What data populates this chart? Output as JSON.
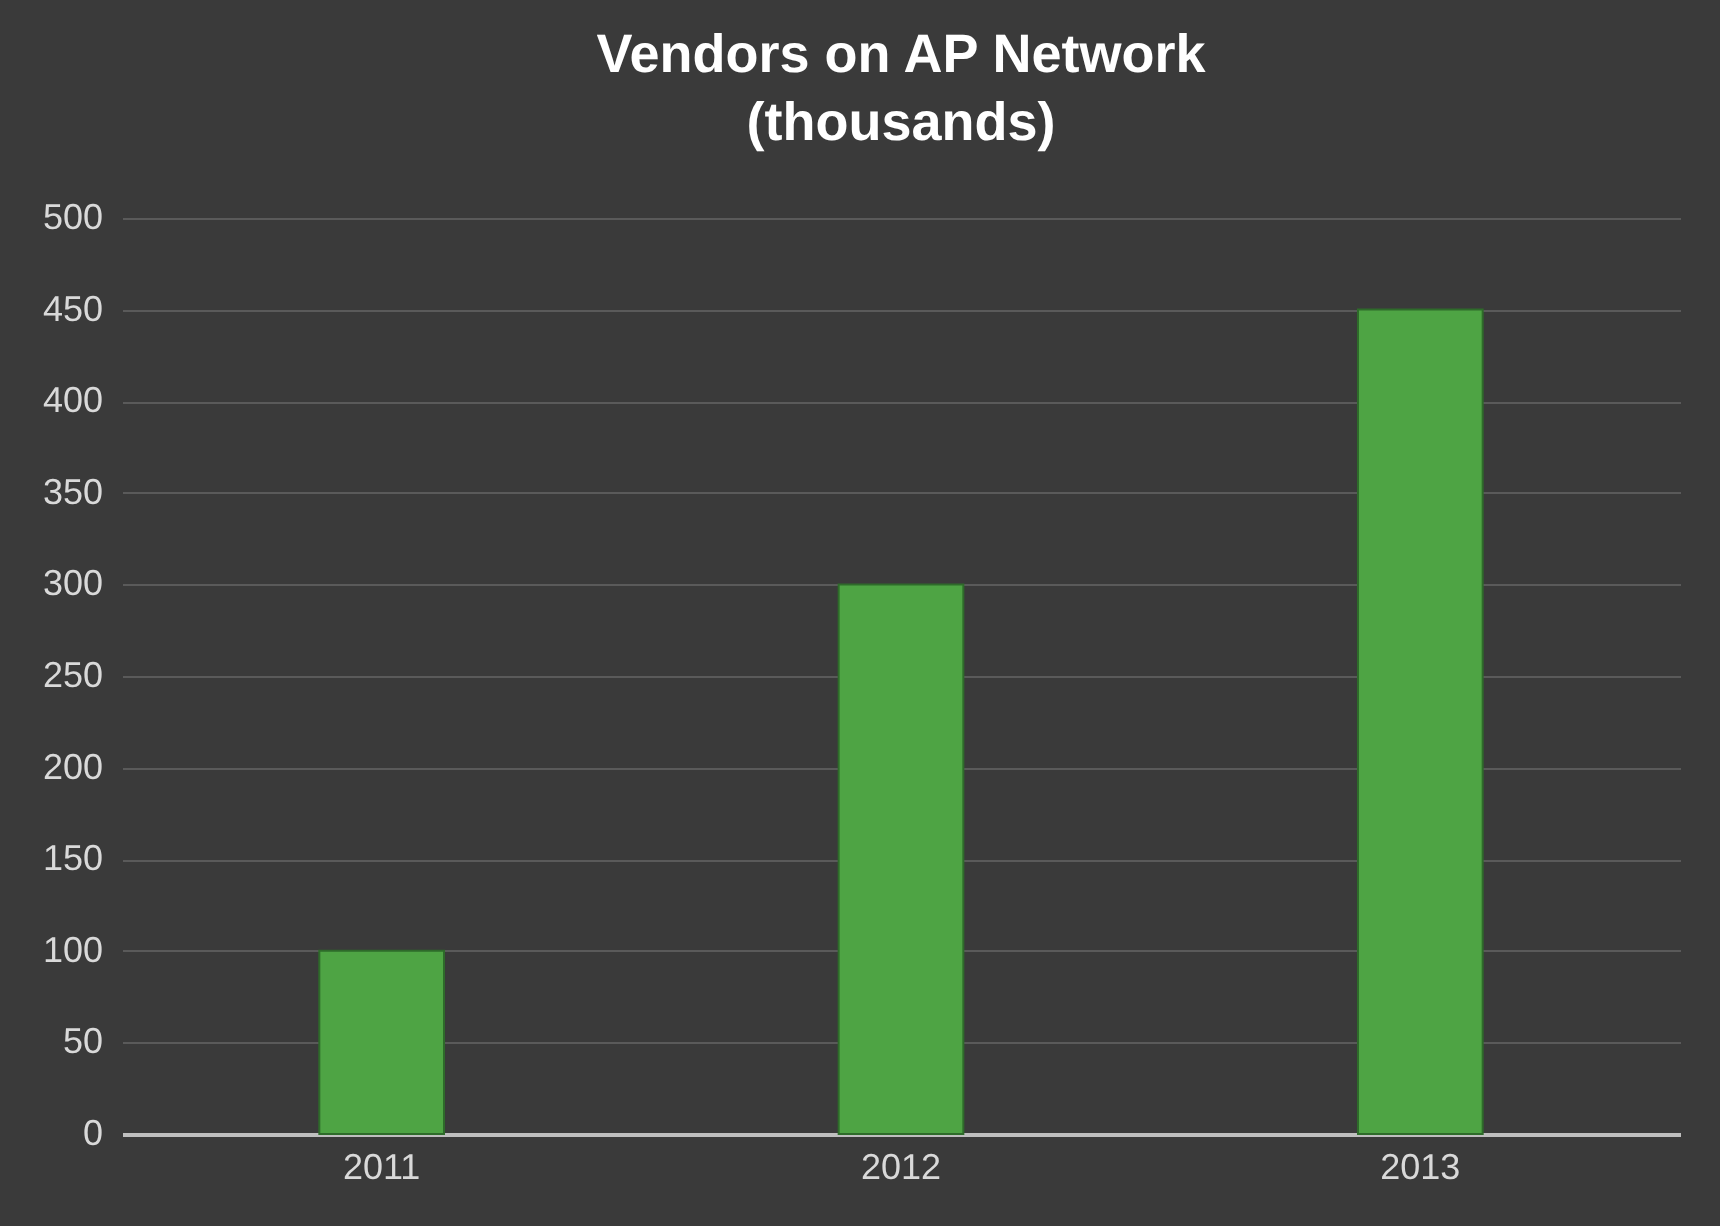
{
  "chart_data": {
    "type": "bar",
    "title": "Vendors on AP Network\n(thousands)",
    "categories": [
      "2011",
      "2012",
      "2013"
    ],
    "values": [
      100,
      300,
      450
    ],
    "color": "#4ea444",
    "ylim": [
      0,
      500
    ],
    "yticks": [
      0,
      50,
      100,
      150,
      200,
      250,
      300,
      350,
      400,
      450,
      500
    ],
    "grid": "y"
  }
}
